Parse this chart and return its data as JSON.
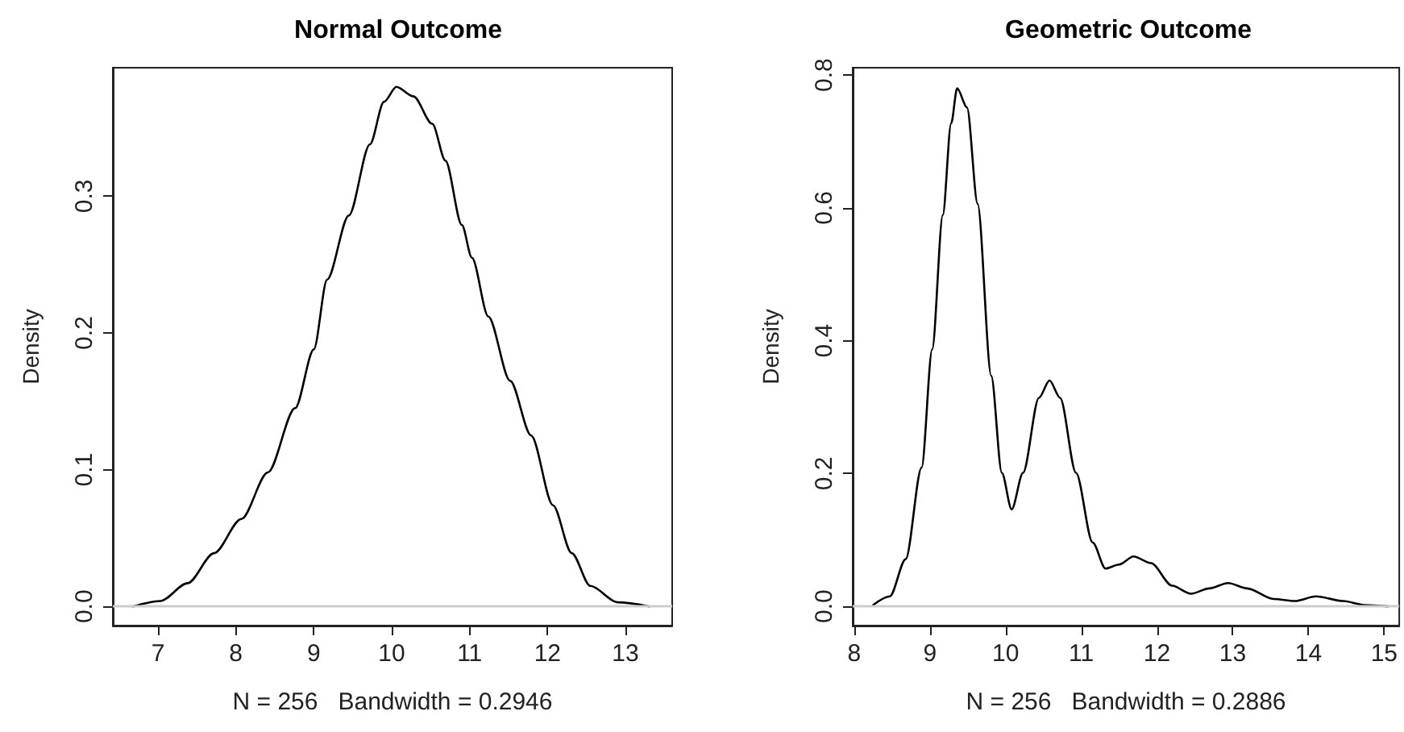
{
  "chart_data": [
    {
      "type": "line",
      "title": "Normal Outcome",
      "xlabel": "N = 256   Bandwidth = 0.2946",
      "ylabel": "Density",
      "x": [
        6.68,
        7.03,
        7.38,
        7.72,
        8.07,
        8.41,
        8.76,
        9.0,
        9.17,
        9.45,
        9.72,
        9.9,
        10.06,
        10.28,
        10.52,
        10.69,
        10.9,
        11.03,
        11.24,
        11.52,
        11.79,
        12.07,
        12.31,
        12.55,
        12.9,
        13.31
      ],
      "series": [
        {
          "color": "#000000",
          "values": [
            0,
            0.004,
            0.017,
            0.039,
            0.064,
            0.098,
            0.145,
            0.188,
            0.239,
            0.286,
            0.338,
            0.369,
            0.38,
            0.373,
            0.353,
            0.326,
            0.279,
            0.255,
            0.212,
            0.165,
            0.125,
            0.074,
            0.039,
            0.015,
            0.003,
            0
          ]
        }
      ],
      "xlim": [
        6.42,
        13.6
      ],
      "ylim": [
        -0.014,
        0.394
      ],
      "xticks": [
        7,
        8,
        9,
        10,
        11,
        12,
        13
      ],
      "yticks": [
        {
          "value": 0,
          "label": "0.0"
        },
        {
          "value": 0.1,
          "label": "0.1"
        },
        {
          "value": 0.2,
          "label": "0.2"
        },
        {
          "value": 0.3,
          "label": "0.3"
        }
      ],
      "ref_lines": [
        {
          "axis": "y",
          "value": 0,
          "color": "#cccccc"
        }
      ],
      "grid": false,
      "marker": "none",
      "line_style": "solid"
    },
    {
      "type": "line",
      "title": "Geometric Outcome",
      "xlabel": "N = 256   Bandwidth = 0.2886",
      "ylabel": "Density",
      "x": [
        8.25,
        8.47,
        8.68,
        8.89,
        9.03,
        9.17,
        9.28,
        9.36,
        9.49,
        9.63,
        9.81,
        9.95,
        10.08,
        10.23,
        10.44,
        10.58,
        10.72,
        10.93,
        11.15,
        11.32,
        11.5,
        11.69,
        11.92,
        12.2,
        12.45,
        12.69,
        12.94,
        13.19,
        13.54,
        13.82,
        14.1,
        14.46,
        14.74,
        15.05
      ],
      "series": [
        {
          "color": "#000000",
          "values": [
            0.002,
            0.015,
            0.071,
            0.209,
            0.387,
            0.589,
            0.727,
            0.78,
            0.751,
            0.606,
            0.347,
            0.201,
            0.146,
            0.201,
            0.314,
            0.34,
            0.314,
            0.201,
            0.096,
            0.057,
            0.063,
            0.075,
            0.065,
            0.031,
            0.019,
            0.027,
            0.035,
            0.027,
            0.011,
            0.008,
            0.015,
            0.008,
            0.002,
            0
          ]
        }
      ],
      "xlim": [
        7.98,
        15.2
      ],
      "ylim": [
        -0.029,
        0.811
      ],
      "xticks": [
        8,
        9,
        10,
        11,
        12,
        13,
        14,
        15
      ],
      "yticks": [
        {
          "value": 0,
          "label": "0.0"
        },
        {
          "value": 0.2,
          "label": "0.2"
        },
        {
          "value": 0.4,
          "label": "0.4"
        },
        {
          "value": 0.6,
          "label": "0.6"
        },
        {
          "value": 0.8,
          "label": "0.8"
        }
      ],
      "ref_lines": [
        {
          "axis": "y",
          "value": 0,
          "color": "#cccccc"
        }
      ],
      "grid": false,
      "marker": "none",
      "line_style": "solid"
    }
  ]
}
